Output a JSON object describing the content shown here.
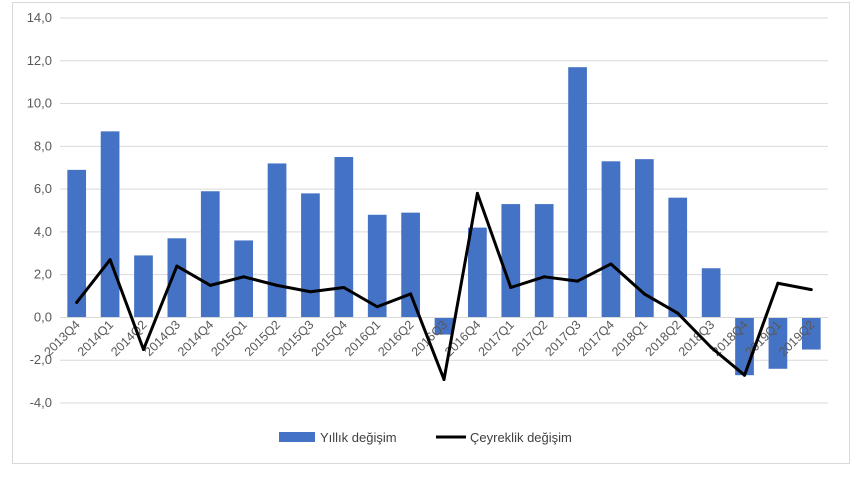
{
  "chart_data": {
    "type": "bar+line",
    "categories": [
      "2013Q4",
      "2014Q1",
      "2014Q2",
      "2014Q3",
      "2014Q4",
      "2015Q1",
      "2015Q2",
      "2015Q3",
      "2015Q4",
      "2016Q1",
      "2016Q2",
      "2016Q3",
      "2016Q4",
      "2017Q1",
      "2017Q2",
      "2017Q3",
      "2017Q4",
      "2018Q1",
      "2018Q2",
      "2018Q3",
      "2018Q4",
      "2019Q1",
      "2019Q2"
    ],
    "series": [
      {
        "name": "Yıllık değişim",
        "kind": "bar",
        "color": "#4472c4",
        "values": [
          6.9,
          8.7,
          2.9,
          3.7,
          5.9,
          3.6,
          7.2,
          5.8,
          7.5,
          4.8,
          4.9,
          -0.8,
          4.2,
          5.3,
          5.3,
          11.7,
          7.3,
          7.4,
          5.6,
          2.3,
          -2.7,
          -2.4,
          -1.5
        ]
      },
      {
        "name": "Çeyreklik değişim",
        "kind": "line",
        "color": "#000000",
        "values": [
          0.7,
          2.7,
          -1.5,
          2.4,
          1.5,
          1.9,
          1.5,
          1.2,
          1.4,
          0.5,
          1.1,
          -2.9,
          5.8,
          1.4,
          1.9,
          1.7,
          2.5,
          1.1,
          0.2,
          -1.4,
          -2.7,
          1.6,
          1.3
        ]
      }
    ],
    "yticks": [
      "14,0",
      "12,0",
      "10,0",
      "8,0",
      "6,0",
      "4,0",
      "2,0",
      "0,0",
      "-2,0",
      "-4,0"
    ],
    "ylim": [
      -4,
      14
    ],
    "grid": true,
    "legend_position": "bottom"
  }
}
